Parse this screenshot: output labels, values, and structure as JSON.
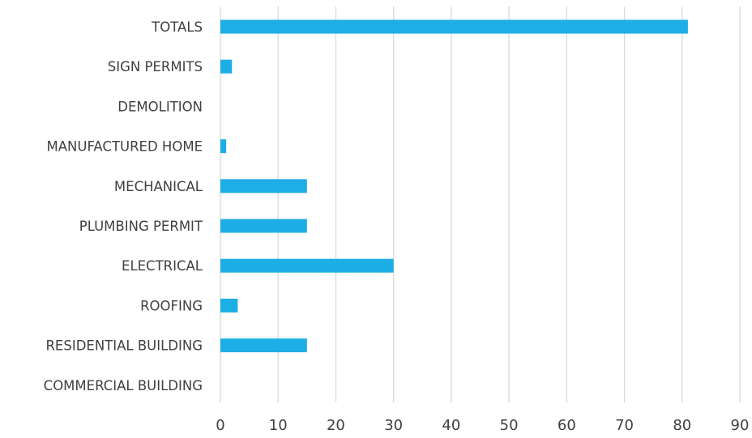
{
  "chart_data": {
    "type": "bar",
    "orientation": "horizontal",
    "categories": [
      "TOTALS",
      "SIGN PERMITS",
      "DEMOLITION",
      "MANUFACTURED HOME",
      "MECHANICAL",
      "PLUMBING PERMIT",
      "ELECTRICAL",
      "ROOFING",
      "RESIDENTIAL BUILDING",
      "COMMERCIAL BUILDING"
    ],
    "values": [
      81,
      2,
      0,
      1,
      15,
      15,
      30,
      3,
      15,
      0
    ],
    "xlim": [
      0,
      90
    ],
    "xticks": [
      0,
      10,
      20,
      30,
      40,
      50,
      60,
      70,
      80,
      90
    ],
    "grid": "vertical",
    "legend": "none"
  },
  "colors": {
    "bar": "#1EAEE6",
    "grid": "#d9d9d9",
    "text": "#404040",
    "background": "#ffffff"
  }
}
